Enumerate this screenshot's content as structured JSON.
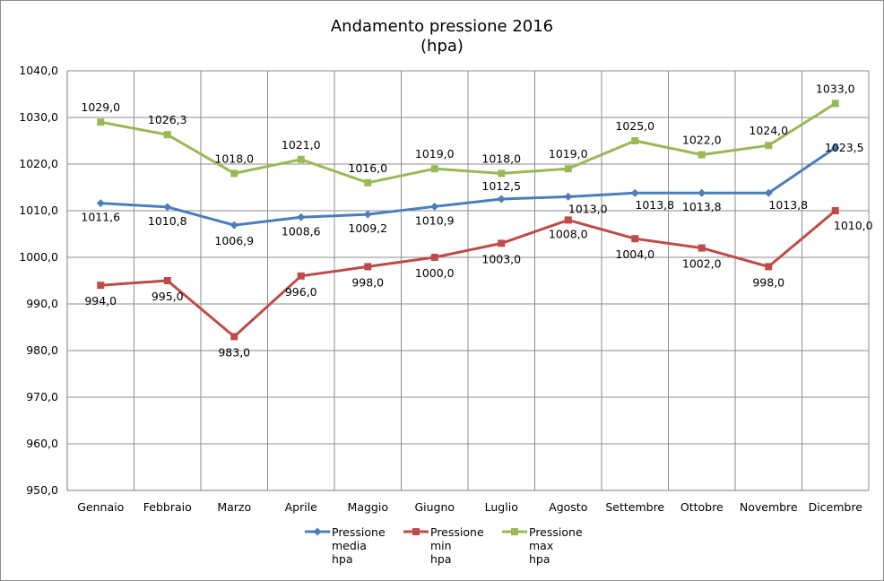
{
  "chart_data": {
    "type": "line",
    "title_lines": [
      "Andamento pressione 2016",
      "(hpa)"
    ],
    "categories": [
      "Gennaio",
      "Febbraio",
      "Marzo",
      "Aprile",
      "Maggio",
      "Giugno",
      "Luglio",
      "Agosto",
      "Settembre",
      "Ottobre",
      "Novembre",
      "Dicembre"
    ],
    "ylim": [
      950,
      1040
    ],
    "yticks": [
      950,
      960,
      970,
      980,
      990,
      1000,
      1010,
      1020,
      1030,
      1040
    ],
    "ytick_labels": [
      "950,0",
      "960,0",
      "970,0",
      "980,0",
      "990,0",
      "1000,0",
      "1010,0",
      "1020,0",
      "1030,0",
      "1040,0"
    ],
    "grid": true,
    "legend_position": "bottom",
    "series": [
      {
        "name_lines": [
          "Pressione",
          "media",
          "hpa"
        ],
        "color": "#4a7ebb",
        "marker": "diamond",
        "values": [
          1011.6,
          1010.8,
          1006.9,
          1008.6,
          1009.2,
          1010.9,
          1012.5,
          1013.0,
          1013.8,
          1013.8,
          1013.8,
          1023.5
        ],
        "labels": [
          "1011,6",
          "1010,8",
          "1006,9",
          "1008,6",
          "1009,2",
          "1010,9",
          "1012,5",
          "1013,0",
          "1013,8",
          "1013,8",
          "1013,8",
          "1023,5"
        ]
      },
      {
        "name_lines": [
          "Pressione",
          "min",
          "hpa"
        ],
        "color": "#be4b48",
        "marker": "square",
        "values": [
          994.0,
          995.0,
          983.0,
          996.0,
          998.0,
          1000.0,
          1003.0,
          1008.0,
          1004.0,
          1002.0,
          998.0,
          1010.0
        ],
        "labels": [
          "994,0",
          "995,0",
          "983,0",
          "996,0",
          "998,0",
          "1000,0",
          "1003,0",
          "1008,0",
          "1004,0",
          "1002,0",
          "998,0",
          "1010,0"
        ]
      },
      {
        "name_lines": [
          "Pressione",
          "max",
          "hpa"
        ],
        "color": "#98b954",
        "marker": "square",
        "values": [
          1029.0,
          1026.3,
          1018.0,
          1021.0,
          1016.0,
          1019.0,
          1018.0,
          1019.0,
          1025.0,
          1022.0,
          1024.0,
          1033.0
        ],
        "labels": [
          "1029,0",
          "1026,3",
          "1018,0",
          "1021,0",
          "1016,0",
          "1019,0",
          "1018,0",
          "1019,0",
          "1025,0",
          "1022,0",
          "1024,0",
          "1033,0"
        ]
      }
    ]
  }
}
